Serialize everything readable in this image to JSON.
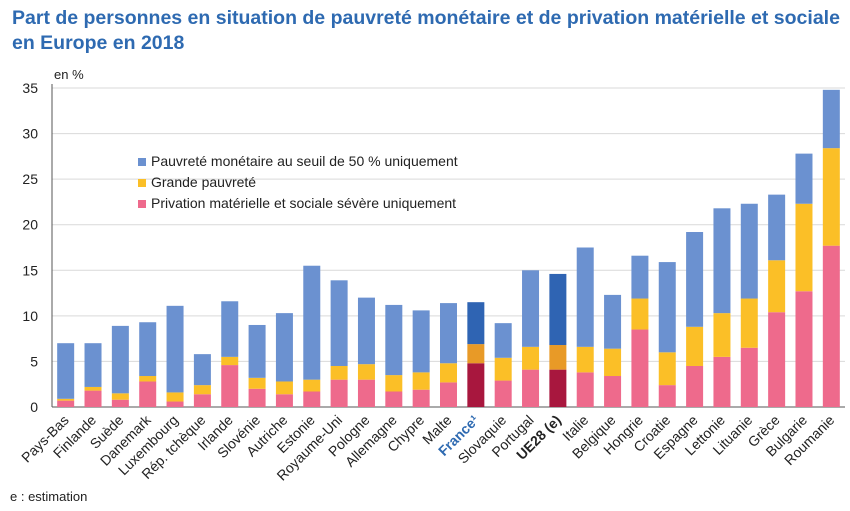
{
  "title": "Part de personnes en situation de pauvreté monétaire et de privation matérielle et sociale en Europe en 2018",
  "note": "e : estimation",
  "chart_data": {
    "type": "bar",
    "stacked": true,
    "unit_label": "en %",
    "ylim": [
      0,
      35
    ],
    "yticks": [
      0,
      5,
      10,
      15,
      20,
      25,
      30,
      35
    ],
    "grid": true,
    "legend_position": "top-left",
    "categories": [
      "Pays-Bas",
      "Finlande",
      "Suède",
      "Danemark",
      "Luxembourg",
      "Rép. tchèque",
      "Irlande",
      "Slovénie",
      "Autriche",
      "Estonie",
      "Royaume-Uni",
      "Pologne",
      "Allemagne",
      "Chypre",
      "Malte",
      "France¹",
      "Slovaquie",
      "Portugal",
      "UE28 (e)",
      "Italie",
      "Belgique",
      "Hongrie",
      "Croatie",
      "Espagne",
      "Lettonie",
      "Lituanie",
      "Grèce",
      "Bulgarie",
      "Roumanie"
    ],
    "highlight": {
      "France¹": "france",
      "UE28 (e)": "eu"
    },
    "series": [
      {
        "name": "Privation matérielle et sociale sévère uniquement",
        "color": "#ee6a8c",
        "values": [
          0.7,
          1.8,
          0.8,
          2.8,
          0.6,
          1.4,
          4.6,
          2.0,
          1.4,
          1.7,
          3.0,
          3.0,
          1.7,
          1.9,
          2.7,
          4.8,
          2.9,
          4.1,
          4.1,
          3.8,
          3.4,
          8.5,
          2.4,
          4.5,
          5.5,
          6.5,
          10.4,
          12.7,
          17.7
        ]
      },
      {
        "name": "Grande pauvreté",
        "color": "#fbbf27",
        "values": [
          0.2,
          0.4,
          0.7,
          0.6,
          1.0,
          1.0,
          0.9,
          1.2,
          1.4,
          1.3,
          1.5,
          1.7,
          1.8,
          1.9,
          2.1,
          2.1,
          2.5,
          2.5,
          2.7,
          2.8,
          3.0,
          3.4,
          3.6,
          4.3,
          4.8,
          5.4,
          5.7,
          9.6,
          10.7
        ]
      },
      {
        "name": "Pauvreté monétaire au seuil de 50 % uniquement",
        "color": "#6b91d0",
        "values": [
          6.1,
          4.8,
          7.4,
          5.9,
          9.5,
          3.4,
          6.1,
          5.8,
          7.5,
          12.5,
          9.4,
          7.3,
          7.7,
          6.8,
          6.6,
          4.6,
          3.8,
          8.4,
          7.8,
          10.9,
          5.9,
          4.7,
          9.9,
          10.4,
          11.5,
          10.4,
          7.2,
          5.5,
          6.4
        ]
      }
    ],
    "highlight_colors": {
      "france": [
        "#a8173e",
        "#e89a27",
        "#2f64b3"
      ],
      "eu": [
        "#a8173e",
        "#e89a27",
        "#2f64b3"
      ]
    }
  }
}
